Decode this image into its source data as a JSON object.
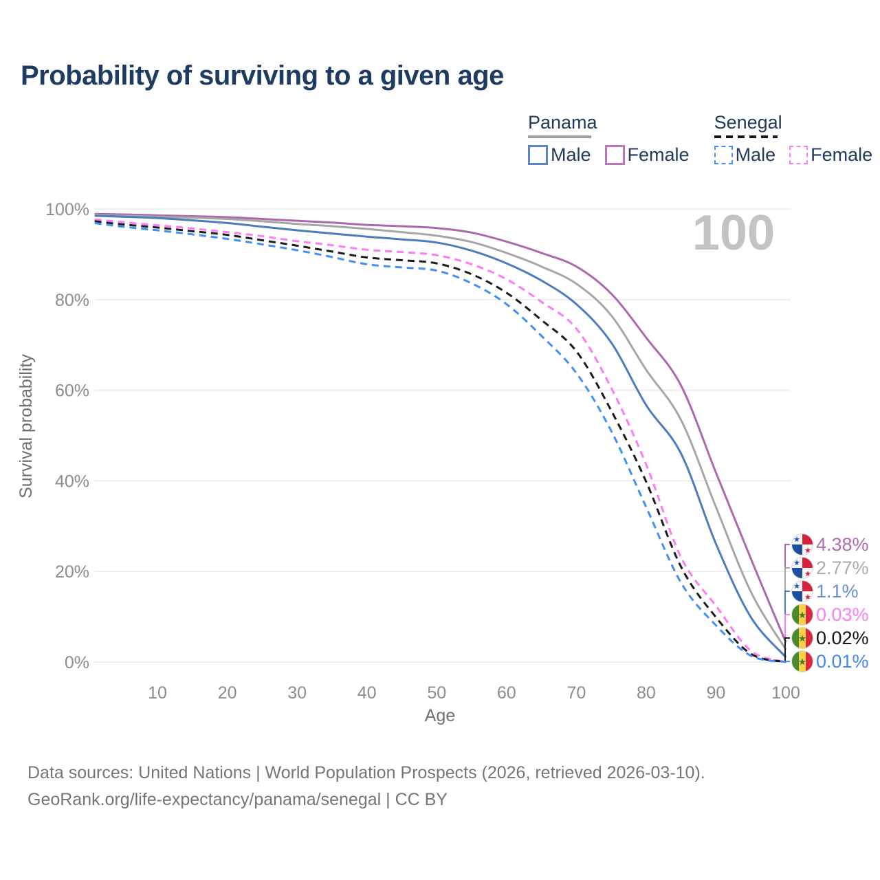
{
  "title": "Probability of surviving to a given age",
  "footer": {
    "line1": "Data sources: United Nations | World Population Prospects (2026, retrieved 2026-03-10).",
    "line2": "GeoRank.org/life-expectancy/panama/senegal | CC BY"
  },
  "legend": {
    "groups": [
      {
        "id": "panama",
        "label": "Panama",
        "line_style": "solid",
        "line_color": "#9e9e9e",
        "items": [
          {
            "id": "panama-male",
            "label": "Male",
            "box_style": "solid",
            "box_color": "#5b84c4"
          },
          {
            "id": "panama-female",
            "label": "Female",
            "box_style": "solid",
            "box_color": "#b976b8"
          }
        ]
      },
      {
        "id": "senegal",
        "label": "Senegal",
        "line_style": "dashed",
        "line_color": "#141414",
        "items": [
          {
            "id": "senegal-male",
            "label": "Male",
            "box_style": "dashed",
            "box_color": "#4090f7"
          },
          {
            "id": "senegal-female",
            "label": "Female",
            "box_style": "dashed",
            "box_color": "#fb7df2"
          }
        ]
      }
    ]
  },
  "chart_data": {
    "type": "line",
    "title": "Probability of surviving to a given age",
    "xlabel": "Age",
    "ylabel": "Survival probability",
    "xlim": [
      0,
      100
    ],
    "ylim": [
      0,
      100
    ],
    "xticks": [
      10,
      20,
      30,
      40,
      50,
      60,
      70,
      80,
      90,
      100
    ],
    "yticks": [
      0,
      20,
      40,
      60,
      80,
      100
    ],
    "ytick_suffix": "%",
    "grid": "horizontal",
    "hover_age_label": "100",
    "series": [
      {
        "id": "panama-female",
        "name": "Panama Female",
        "country": "panama",
        "sex": "female",
        "color": "#ad68ad",
        "dash": false,
        "end_label": "4.38%",
        "end_label_color": "#b06cb3",
        "points": [
          [
            1,
            98.9
          ],
          [
            5,
            98.8
          ],
          [
            10,
            98.6
          ],
          [
            15,
            98.4
          ],
          [
            20,
            98.2
          ],
          [
            25,
            97.8
          ],
          [
            30,
            97.4
          ],
          [
            35,
            97.0
          ],
          [
            40,
            96.5
          ],
          [
            45,
            96.2
          ],
          [
            50,
            95.8
          ],
          [
            55,
            94.8
          ],
          [
            60,
            92.8
          ],
          [
            65,
            90.3
          ],
          [
            70,
            87.3
          ],
          [
            75,
            81.3
          ],
          [
            80,
            71.6
          ],
          [
            85,
            61.0
          ],
          [
            90,
            41.8
          ],
          [
            95,
            22.8
          ],
          [
            100,
            4.38
          ]
        ]
      },
      {
        "id": "panama-both",
        "name": "Panama Both sexes",
        "country": "panama",
        "sex": "both",
        "color": "#a6a6a6",
        "dash": false,
        "end_label": "2.77%",
        "end_label_color": "#ababab",
        "points": [
          [
            1,
            98.7
          ],
          [
            5,
            98.5
          ],
          [
            10,
            98.3
          ],
          [
            15,
            98.1
          ],
          [
            20,
            97.8
          ],
          [
            25,
            97.3
          ],
          [
            30,
            96.7
          ],
          [
            35,
            96.2
          ],
          [
            40,
            95.6
          ],
          [
            45,
            94.9
          ],
          [
            50,
            94.1
          ],
          [
            55,
            92.7
          ],
          [
            60,
            90.3
          ],
          [
            65,
            87.3
          ],
          [
            70,
            83.5
          ],
          [
            75,
            76.5
          ],
          [
            80,
            64.5
          ],
          [
            85,
            53.4
          ],
          [
            90,
            34.2
          ],
          [
            95,
            15.5
          ],
          [
            100,
            2.77
          ]
        ]
      },
      {
        "id": "panama-male",
        "name": "Panama Male",
        "country": "panama",
        "sex": "male",
        "color": "#4d7cbe",
        "dash": false,
        "end_label": "1.1%",
        "end_label_color": "#6490d4",
        "points": [
          [
            1,
            98.5
          ],
          [
            5,
            98.3
          ],
          [
            10,
            98.0
          ],
          [
            15,
            97.5
          ],
          [
            20,
            96.9
          ],
          [
            25,
            96.1
          ],
          [
            30,
            95.3
          ],
          [
            35,
            94.6
          ],
          [
            40,
            93.9
          ],
          [
            45,
            93.3
          ],
          [
            50,
            92.6
          ],
          [
            55,
            90.8
          ],
          [
            60,
            88.0
          ],
          [
            65,
            84.2
          ],
          [
            70,
            79.0
          ],
          [
            75,
            70.5
          ],
          [
            80,
            56.7
          ],
          [
            85,
            46.0
          ],
          [
            90,
            26.1
          ],
          [
            95,
            9.9
          ],
          [
            100,
            1.1
          ]
        ]
      },
      {
        "id": "senegal-female",
        "name": "Senegal Female",
        "country": "senegal",
        "sex": "female",
        "color": "#fd7cf3",
        "dash": true,
        "end_label": "0.03%",
        "end_label_color": "#fb80f2",
        "points": [
          [
            1,
            97.7
          ],
          [
            5,
            97.1
          ],
          [
            10,
            96.4
          ],
          [
            15,
            95.7
          ],
          [
            20,
            94.9
          ],
          [
            25,
            94.0
          ],
          [
            30,
            92.9
          ],
          [
            35,
            92.0
          ],
          [
            40,
            91.0
          ],
          [
            45,
            90.5
          ],
          [
            50,
            89.8
          ],
          [
            55,
            87.8
          ],
          [
            60,
            84.5
          ],
          [
            65,
            79.5
          ],
          [
            70,
            73.6
          ],
          [
            75,
            60.5
          ],
          [
            80,
            43.6
          ],
          [
            85,
            23.1
          ],
          [
            90,
            12.4
          ],
          [
            95,
            2.5
          ],
          [
            100,
            0.03
          ]
        ]
      },
      {
        "id": "senegal-both",
        "name": "Senegal Both sexes",
        "country": "senegal",
        "sex": "both",
        "color": "#1a1a1a",
        "dash": true,
        "end_label": "0.02%",
        "end_label_color": "#141414",
        "points": [
          [
            1,
            97.3
          ],
          [
            5,
            96.6
          ],
          [
            10,
            95.9
          ],
          [
            15,
            95.1
          ],
          [
            20,
            94.3
          ],
          [
            25,
            93.1
          ],
          [
            30,
            91.9
          ],
          [
            35,
            90.6
          ],
          [
            40,
            89.3
          ],
          [
            45,
            88.7
          ],
          [
            50,
            88.0
          ],
          [
            55,
            85.6
          ],
          [
            60,
            81.5
          ],
          [
            65,
            75.5
          ],
          [
            70,
            68.6
          ],
          [
            75,
            55.5
          ],
          [
            80,
            39.8
          ],
          [
            85,
            21.0
          ],
          [
            90,
            9.9
          ],
          [
            95,
            1.8
          ],
          [
            100,
            0.02
          ]
        ]
      },
      {
        "id": "senegal-male",
        "name": "Senegal Male",
        "country": "senegal",
        "sex": "male",
        "color": "#4090f7",
        "dash": true,
        "end_label": "0.01%",
        "end_label_color": "#4387f2",
        "points": [
          [
            1,
            96.9
          ],
          [
            5,
            96.1
          ],
          [
            10,
            95.3
          ],
          [
            15,
            94.4
          ],
          [
            20,
            93.4
          ],
          [
            25,
            92.2
          ],
          [
            30,
            90.9
          ],
          [
            35,
            89.4
          ],
          [
            40,
            87.8
          ],
          [
            45,
            87.1
          ],
          [
            50,
            86.4
          ],
          [
            55,
            83.6
          ],
          [
            60,
            79.0
          ],
          [
            65,
            72.0
          ],
          [
            70,
            63.8
          ],
          [
            75,
            51.0
          ],
          [
            80,
            34.2
          ],
          [
            85,
            17.5
          ],
          [
            90,
            8.1
          ],
          [
            95,
            1.4
          ],
          [
            100,
            0.01
          ]
        ]
      }
    ]
  }
}
